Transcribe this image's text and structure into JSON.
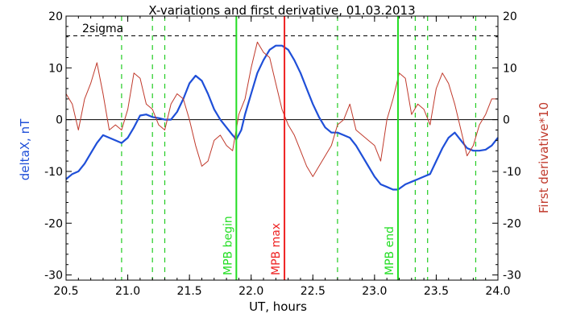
{
  "chart_data": {
    "type": "line",
    "title": "X-variations and first derivative, 01.03.2013",
    "xlabel": "UT, hours",
    "ylabel_left": "deltaX, nT",
    "ylabel_right": "First derivative*10",
    "xlim": [
      20.5,
      24.0
    ],
    "ylim": [
      -31,
      20
    ],
    "x_ticks": [
      "20.5",
      "21.0",
      "21.5",
      "22.0",
      "22.5",
      "23.0",
      "23.5",
      "24.0"
    ],
    "y_ticks": [
      "20",
      "10",
      "0",
      "-10",
      "-20",
      "-30"
    ],
    "colors": {
      "deltaX": "#1f4fd8",
      "derivative": "#c0392b",
      "mpb_boundary": "#22dd22",
      "mpb_max": "#ee2222",
      "dashed_marker": "#22cc22",
      "axis": "#000000"
    },
    "two_sigma": {
      "label": "2sigma",
      "value": 16.2
    },
    "zero_line": 0,
    "vertical_markers": [
      {
        "x": 21.88,
        "label": "MPB begin",
        "kind": "mpb_boundary"
      },
      {
        "x": 22.27,
        "label": "MPB max",
        "kind": "mpb_max"
      },
      {
        "x": 23.19,
        "label": "MPB end",
        "kind": "mpb_boundary"
      }
    ],
    "dashed_markers": [
      20.95,
      21.2,
      21.3,
      22.7,
      23.33,
      23.43,
      23.82
    ],
    "series": [
      {
        "key": "deltaX",
        "axis": "left",
        "x": [
          20.5,
          20.55,
          20.6,
          20.65,
          20.7,
          20.75,
          20.8,
          20.85,
          20.9,
          20.95,
          21.0,
          21.05,
          21.1,
          21.15,
          21.2,
          21.25,
          21.3,
          21.35,
          21.4,
          21.45,
          21.5,
          21.55,
          21.6,
          21.65,
          21.7,
          21.75,
          21.8,
          21.85,
          21.88,
          21.92,
          21.95,
          22.0,
          22.05,
          22.1,
          22.15,
          22.2,
          22.25,
          22.3,
          22.35,
          22.4,
          22.45,
          22.5,
          22.55,
          22.6,
          22.65,
          22.7,
          22.75,
          22.8,
          22.85,
          22.9,
          22.95,
          23.0,
          23.05,
          23.1,
          23.15,
          23.19,
          23.25,
          23.3,
          23.35,
          23.4,
          23.45,
          23.5,
          23.55,
          23.6,
          23.65,
          23.7,
          23.75,
          23.8,
          23.85,
          23.9,
          23.95,
          24.0
        ],
        "y": [
          -11.5,
          -10.5,
          -10.0,
          -8.5,
          -6.5,
          -4.5,
          -3.0,
          -3.5,
          -4.0,
          -4.5,
          -3.5,
          -1.5,
          0.8,
          1.0,
          0.5,
          0.3,
          0.0,
          0.0,
          1.5,
          4.0,
          7.0,
          8.5,
          7.5,
          5.0,
          2.0,
          0.0,
          -1.5,
          -3.0,
          -3.8,
          -2.0,
          1.0,
          5.0,
          9.0,
          11.5,
          13.5,
          14.3,
          14.3,
          13.5,
          11.5,
          9.0,
          6.0,
          3.0,
          0.5,
          -1.5,
          -2.5,
          -2.5,
          -3.0,
          -3.5,
          -5.0,
          -7.0,
          -9.0,
          -11.0,
          -12.5,
          -13.0,
          -13.5,
          -13.5,
          -12.5,
          -12.0,
          -11.5,
          -11.0,
          -10.5,
          -8.0,
          -5.5,
          -3.5,
          -2.5,
          -4.0,
          -5.5,
          -6.0,
          -6.0,
          -5.8,
          -5.0,
          -3.5
        ]
      },
      {
        "key": "derivative",
        "axis": "right",
        "x": [
          20.5,
          20.55,
          20.6,
          20.65,
          20.7,
          20.75,
          20.8,
          20.85,
          20.9,
          20.95,
          21.0,
          21.05,
          21.1,
          21.15,
          21.2,
          21.25,
          21.3,
          21.35,
          21.4,
          21.45,
          21.5,
          21.55,
          21.6,
          21.65,
          21.7,
          21.75,
          21.8,
          21.85,
          21.9,
          21.95,
          22.0,
          22.05,
          22.1,
          22.15,
          22.2,
          22.25,
          22.3,
          22.35,
          22.4,
          22.45,
          22.5,
          22.55,
          22.6,
          22.65,
          22.7,
          22.75,
          22.8,
          22.85,
          22.9,
          22.95,
          23.0,
          23.05,
          23.1,
          23.15,
          23.2,
          23.25,
          23.3,
          23.35,
          23.4,
          23.45,
          23.5,
          23.55,
          23.6,
          23.65,
          23.7,
          23.75,
          23.8,
          23.85,
          23.9,
          23.95,
          24.0
        ],
        "y": [
          5.0,
          3.0,
          -2.0,
          4.0,
          7.0,
          11.0,
          5.0,
          -2.0,
          -1.0,
          -2.0,
          2.0,
          9.0,
          8.0,
          3.0,
          2.0,
          -1.0,
          -2.0,
          3.0,
          5.0,
          4.0,
          0.0,
          -5.0,
          -9.0,
          -8.0,
          -4.0,
          -3.0,
          -5.0,
          -6.0,
          1.0,
          4.0,
          10.0,
          15.0,
          13.0,
          12.0,
          7.0,
          2.0,
          -1.0,
          -3.0,
          -6.0,
          -9.0,
          -11.0,
          -9.0,
          -7.0,
          -5.0,
          -1.0,
          0.0,
          3.0,
          -2.0,
          -3.0,
          -4.0,
          -5.0,
          -8.0,
          0.0,
          4.0,
          9.0,
          8.0,
          1.0,
          3.0,
          2.0,
          -1.0,
          6.0,
          9.0,
          7.0,
          3.0,
          -2.0,
          -7.0,
          -5.0,
          -1.0,
          1.0,
          4.0,
          4.0
        ]
      }
    ]
  }
}
